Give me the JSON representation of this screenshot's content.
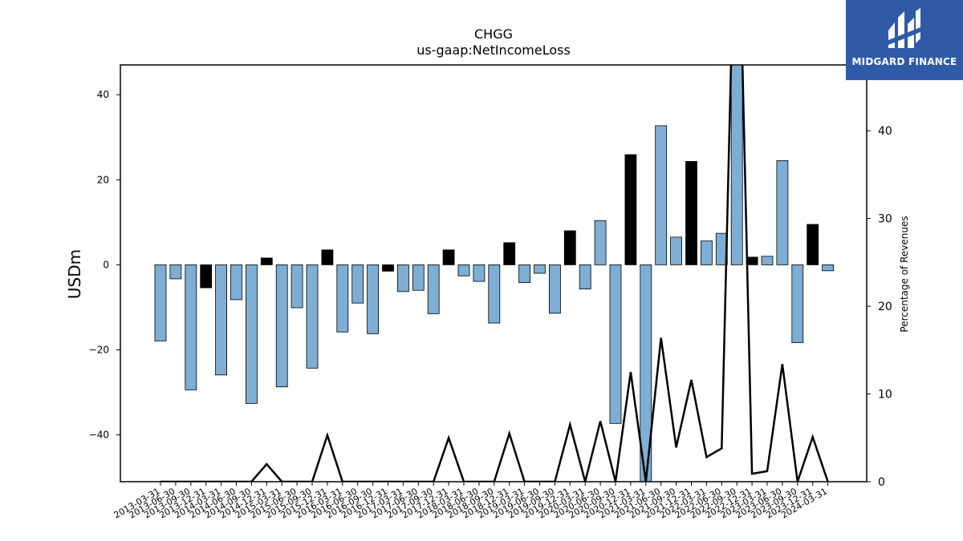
{
  "chart_data": {
    "type": "bar",
    "title": "CHGG",
    "subtitle": "us-gaap:NetIncomeLoss",
    "ylabel": "USDm",
    "y2label": "Percentage of Revenues",
    "ylim": [
      -51,
      47
    ],
    "y2lim": [
      0,
      47.5
    ],
    "yticks": [
      -40,
      -20,
      0,
      20,
      40
    ],
    "y2ticks": [
      0,
      10,
      20,
      30,
      40
    ],
    "categories": [
      "2013-03-31",
      "2013-06-30",
      "2013-09-30",
      "2013-12-31",
      "2014-03-31",
      "2014-06-30",
      "2014-09-30",
      "2014-12-31",
      "2015-03-31",
      "2015-06-30",
      "2015-09-30",
      "2015-12-31",
      "2016-03-31",
      "2016-06-30",
      "2016-09-30",
      "2016-12-31",
      "2017-03-31",
      "2017-06-30",
      "2017-09-30",
      "2017-12-31",
      "2018-03-31",
      "2018-06-30",
      "2018-09-30",
      "2018-12-31",
      "2019-03-31",
      "2019-06-30",
      "2019-09-30",
      "2019-12-31",
      "2020-03-31",
      "2020-06-30",
      "2020-09-30",
      "2020-12-31",
      "2021-03-31",
      "2021-06-30",
      "2021-09-30",
      "2021-12-31",
      "2022-03-31",
      "2022-06-30",
      "2022-09-30",
      "2022-12-31",
      "2023-03-31",
      "2023-06-30",
      "2023-09-30",
      "2023-12-31",
      "2024-03-31"
    ],
    "series": [
      {
        "kind": "bar",
        "values": [
          -17.9,
          -3.3,
          -29.4,
          -5.4,
          -25.9,
          -8.2,
          -32.6,
          1.6,
          -28.7,
          -10.1,
          -24.3,
          3.5,
          -15.8,
          -9.0,
          -16.2,
          -1.5,
          -6.3,
          -6.0,
          -11.5,
          3.5,
          -2.6,
          -3.9,
          -13.7,
          5.2,
          -4.2,
          -2.0,
          -11.4,
          8.0,
          -5.7,
          10.4,
          -37.3,
          25.9,
          -51.0,
          32.7,
          6.5,
          24.3,
          5.6,
          7.4,
          47.0,
          1.8,
          2.0,
          24.5,
          -18.3,
          9.5,
          -1.4
        ],
        "colors": {
          "negative_or_decline": "#7eaed3",
          "positive_growth": "#000000"
        }
      },
      {
        "kind": "line",
        "axis": "right",
        "color": "#000000",
        "values": [
          0,
          0,
          0,
          0,
          0,
          0,
          0,
          2.0,
          0,
          0,
          0,
          5.3,
          0,
          0,
          0,
          0,
          0,
          0,
          0,
          5.0,
          0,
          0,
          0,
          5.5,
          0,
          0,
          0,
          6.5,
          0,
          6.9,
          0,
          12.5,
          0,
          16.4,
          3.9,
          11.6,
          2.8,
          3.8,
          75,
          0.9,
          1.2,
          13.4,
          0,
          5.1,
          0
        ]
      }
    ],
    "bar_colors": [
      "blue",
      "blue",
      "blue",
      "black",
      "blue",
      "blue",
      "blue",
      "black",
      "blue",
      "blue",
      "blue",
      "black",
      "blue",
      "blue",
      "blue",
      "black",
      "blue",
      "blue",
      "blue",
      "black",
      "blue",
      "blue",
      "blue",
      "black",
      "blue",
      "blue",
      "blue",
      "black",
      "blue",
      "blue",
      "blue",
      "black",
      "blue",
      "blue",
      "blue",
      "black",
      "blue",
      "blue",
      "blue",
      "black",
      "blue",
      "blue",
      "blue",
      "black",
      "blue"
    ]
  },
  "logo": {
    "text": "MIDGARD FINANCE",
    "background": "#2f5aa8"
  }
}
